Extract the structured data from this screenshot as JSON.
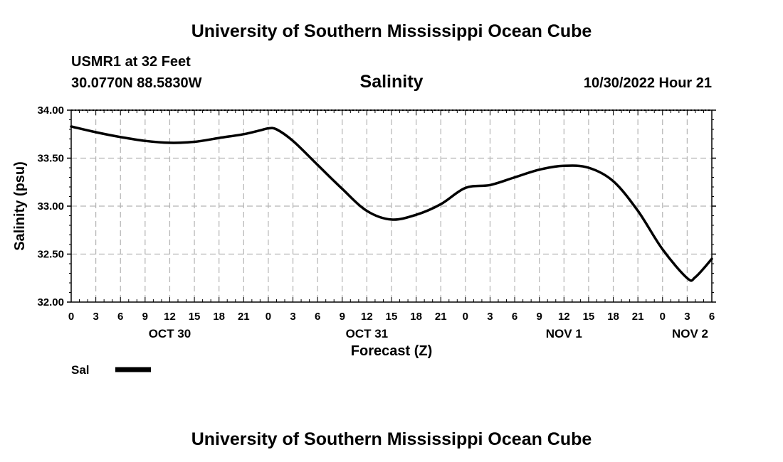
{
  "header": {
    "title": "University of Southern Mississippi Ocean Cube",
    "station": "USMR1 at 32 Feet",
    "coordinates": "30.0770N  88.5830W",
    "timestamp": "10/30/2022 Hour 21"
  },
  "footer": {
    "title": "University of Southern Mississippi Ocean Cube"
  },
  "chart_data": {
    "type": "line",
    "title": "Salinity",
    "xlabel": "Forecast (Z)",
    "ylabel": "Salinity (psu)",
    "ylim": [
      32.0,
      34.0
    ],
    "xlim": [
      0,
      78
    ],
    "y_ticks": [
      "32.00",
      "32.50",
      "33.00",
      "33.50",
      "34.00"
    ],
    "x_tick_labels": [
      "0",
      "3",
      "6",
      "9",
      "12",
      "15",
      "18",
      "21",
      "0",
      "3",
      "6",
      "9",
      "12",
      "15",
      "18",
      "21",
      "0",
      "3",
      "6",
      "9",
      "12",
      "15",
      "18",
      "21",
      "0",
      "3",
      "6"
    ],
    "day_labels": [
      {
        "hour": 12,
        "label": "OCT 30"
      },
      {
        "hour": 36,
        "label": "OCT 31"
      },
      {
        "hour": 60,
        "label": "NOV 1"
      },
      {
        "hour": 78,
        "label": "NOV 2"
      }
    ],
    "grid": true,
    "legend_position": "bottom-left",
    "series": [
      {
        "name": "Sal",
        "x": [
          0,
          3,
          6,
          9,
          12,
          15,
          18,
          21,
          23,
          24,
          25,
          27,
          30,
          33,
          36,
          39,
          42,
          45,
          48,
          51,
          54,
          57,
          60,
          63,
          66,
          69,
          72,
          75,
          76,
          78
        ],
        "y": [
          33.83,
          33.77,
          33.72,
          33.68,
          33.66,
          33.67,
          33.71,
          33.75,
          33.79,
          33.81,
          33.8,
          33.68,
          33.43,
          33.18,
          32.95,
          32.86,
          32.91,
          33.02,
          33.19,
          33.22,
          33.3,
          33.38,
          33.42,
          33.4,
          33.26,
          32.95,
          32.55,
          32.25,
          32.26,
          32.45
        ]
      }
    ]
  }
}
